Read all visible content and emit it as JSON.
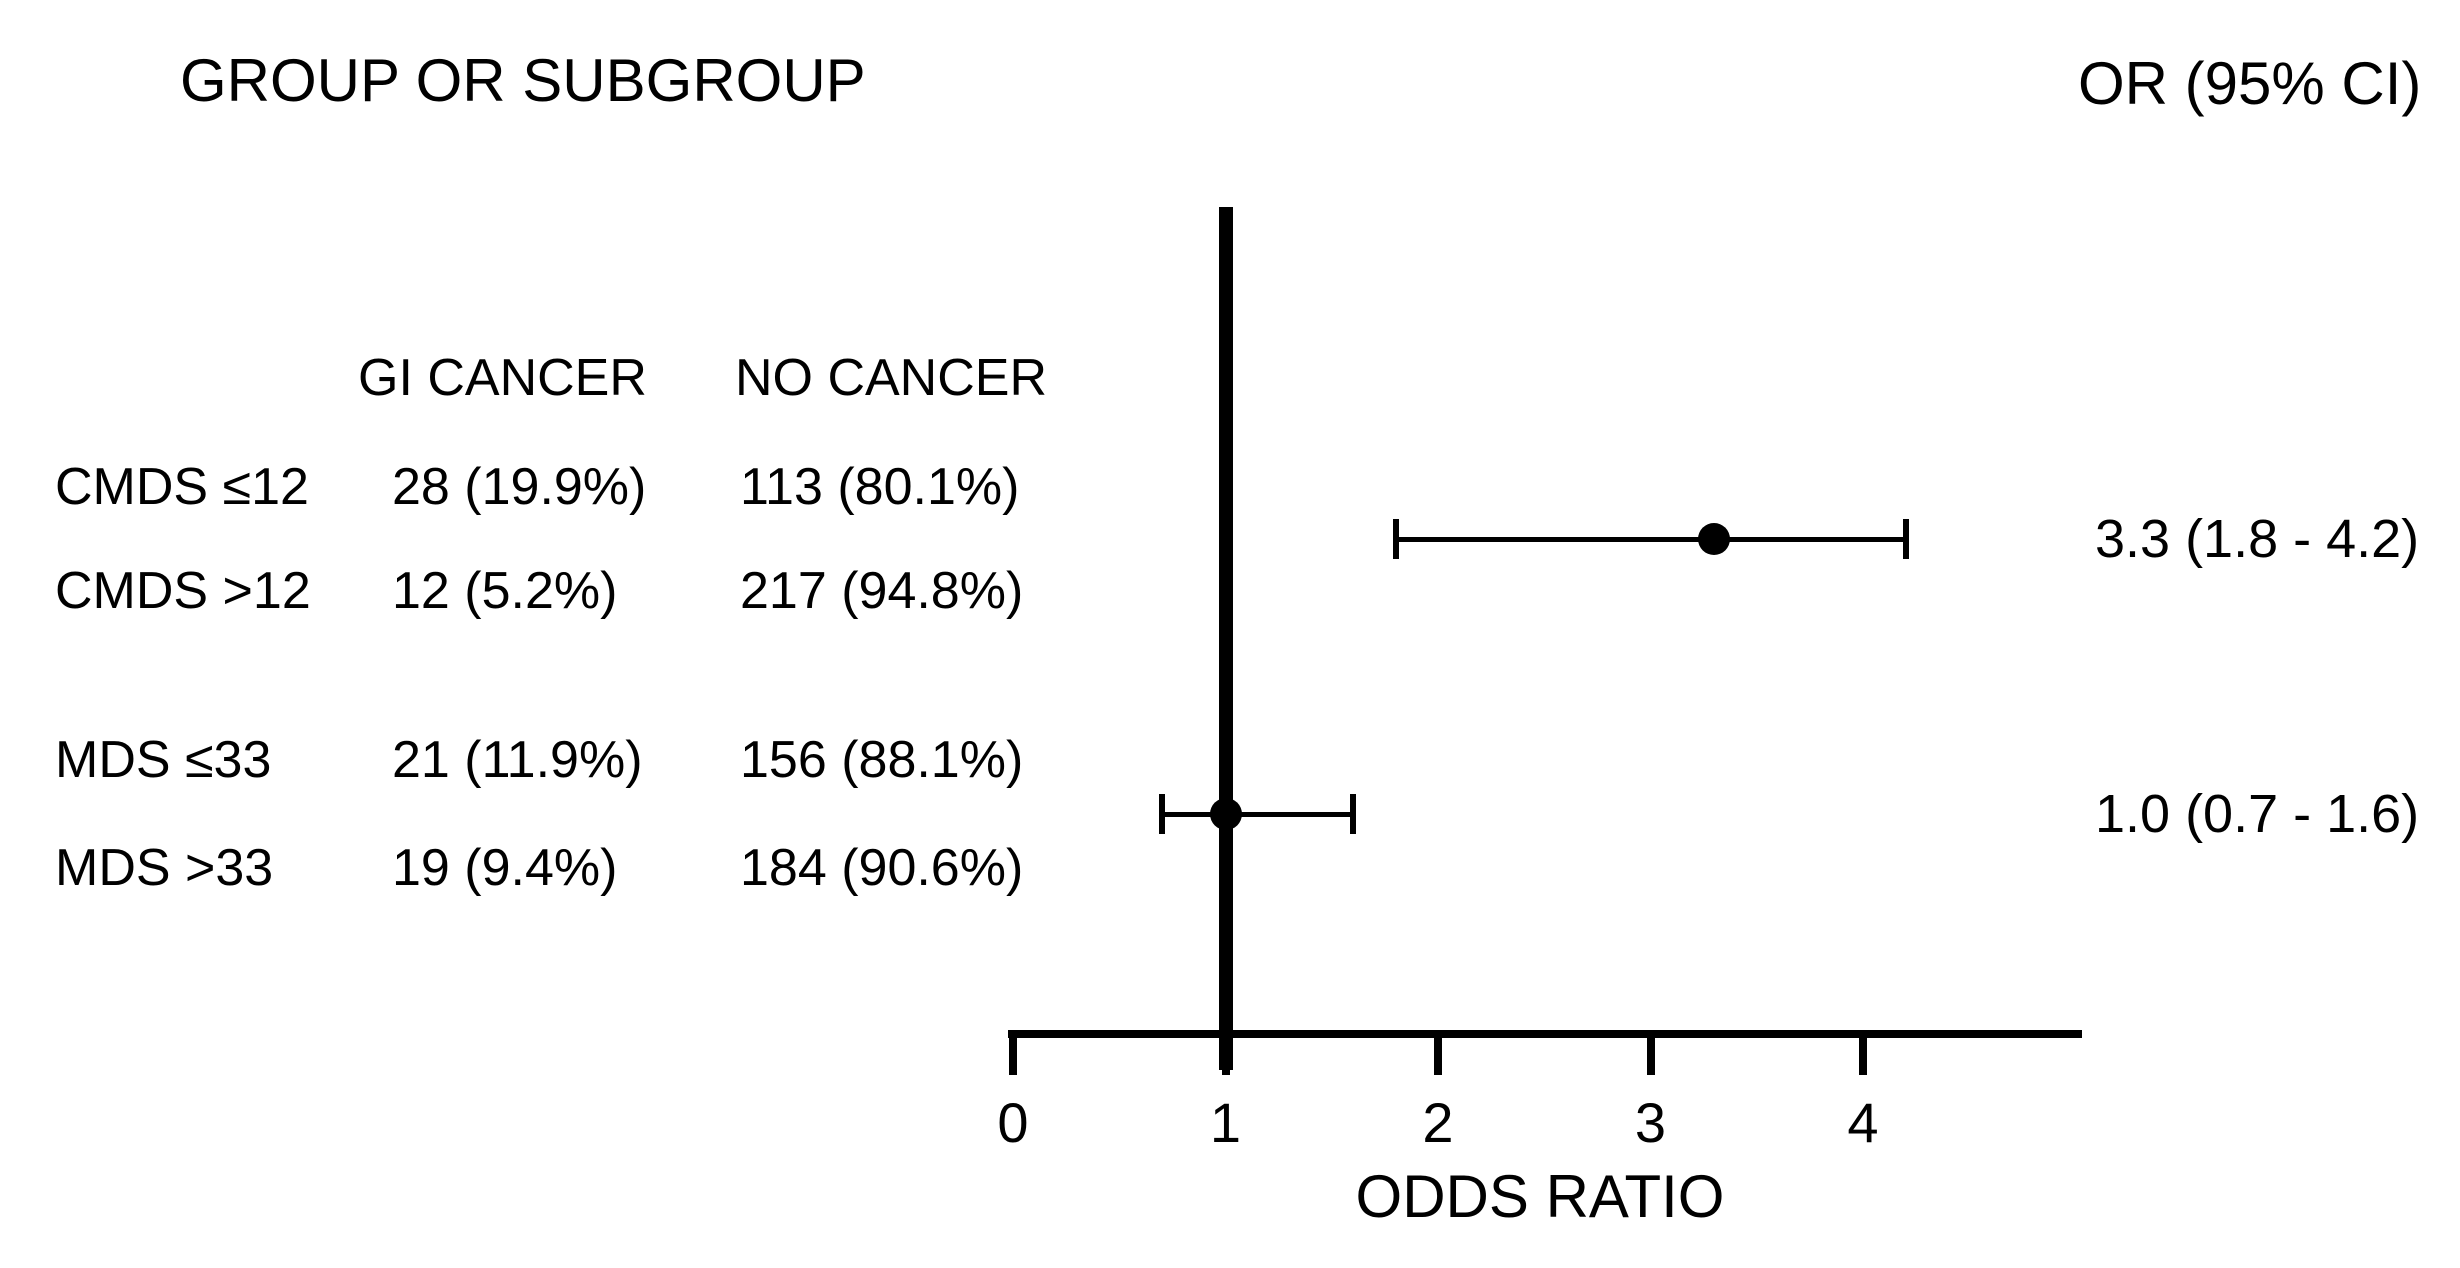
{
  "header": {
    "title": "GROUP OR SUBGROUP",
    "or_column_title": "OR (95% CI)"
  },
  "chart_data": {
    "type": "scatter",
    "variant": "forest-plot",
    "title": "GROUP OR SUBGROUP",
    "xlabel": "ODDS RATIO",
    "xlim": [
      0,
      5.05
    ],
    "xticks": [
      "0",
      "1",
      "2",
      "3",
      "4"
    ],
    "xtick_values": [
      0,
      1,
      2,
      3,
      4
    ],
    "reference_line_x": 1,
    "grid": false,
    "legend": "none",
    "or_header": "OR (95% CI)",
    "table": {
      "columns": [
        "GI CANCER",
        "NO CANCER"
      ],
      "rows": [
        {
          "group": "CMDS ≤12",
          "gi_cancer": "28 (19.9%)",
          "no_cancer": "113 (80.1%)"
        },
        {
          "group": "CMDS >12",
          "gi_cancer": "12 (5.2%)",
          "no_cancer": "217 (94.8%)"
        },
        {
          "group": "MDS ≤33",
          "gi_cancer": "21 (11.9%)",
          "no_cancer": "156 (88.1%)"
        },
        {
          "group": "MDS >33",
          "gi_cancer": "19 (9.4%)",
          "no_cancer": "184 (90.6%)"
        }
      ]
    },
    "points": [
      {
        "or": 3.3,
        "ci_low": 1.8,
        "ci_high": 4.2,
        "label": "3.3 (1.8 - 4.2)"
      },
      {
        "or": 1.0,
        "ci_low": 0.7,
        "ci_high": 1.6,
        "label": "1.0 (0.7 - 1.6)"
      }
    ]
  },
  "colors": {
    "ink": "#000000",
    "background": "#ffffff"
  }
}
